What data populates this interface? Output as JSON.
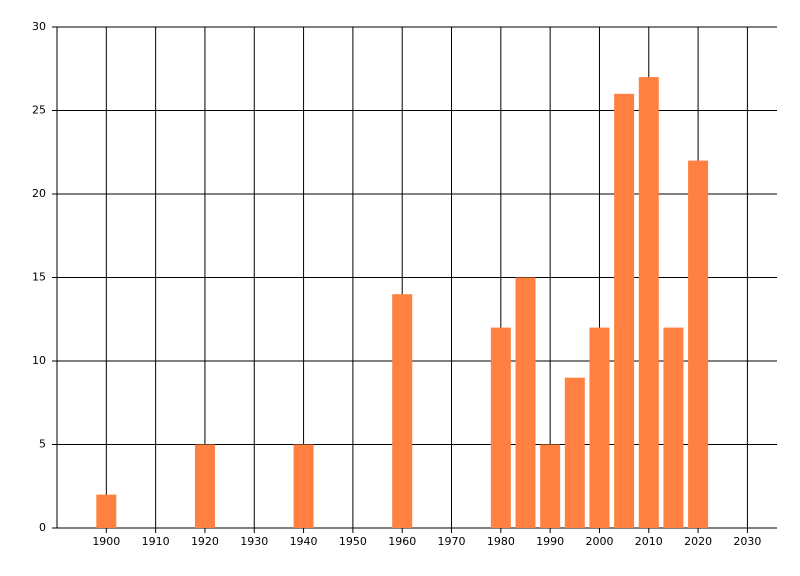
{
  "chart_data": {
    "type": "bar",
    "x": [
      1900,
      1920,
      1940,
      1960,
      1980,
      1985,
      1990,
      1995,
      2000,
      2005,
      2010,
      2015,
      2020
    ],
    "values": [
      2,
      5,
      5,
      14,
      12,
      15,
      5,
      9,
      12,
      26,
      27,
      12,
      22
    ],
    "color": "#ff8040",
    "xlim": [
      1890,
      2036
    ],
    "xticks": [
      1900,
      1910,
      1920,
      1930,
      1940,
      1950,
      1960,
      1970,
      1980,
      1990,
      2000,
      2010,
      2020,
      2030
    ],
    "ylim": [
      0,
      30
    ],
    "yticks": [
      0,
      5,
      10,
      15,
      20,
      25,
      30
    ],
    "grid": true
  }
}
